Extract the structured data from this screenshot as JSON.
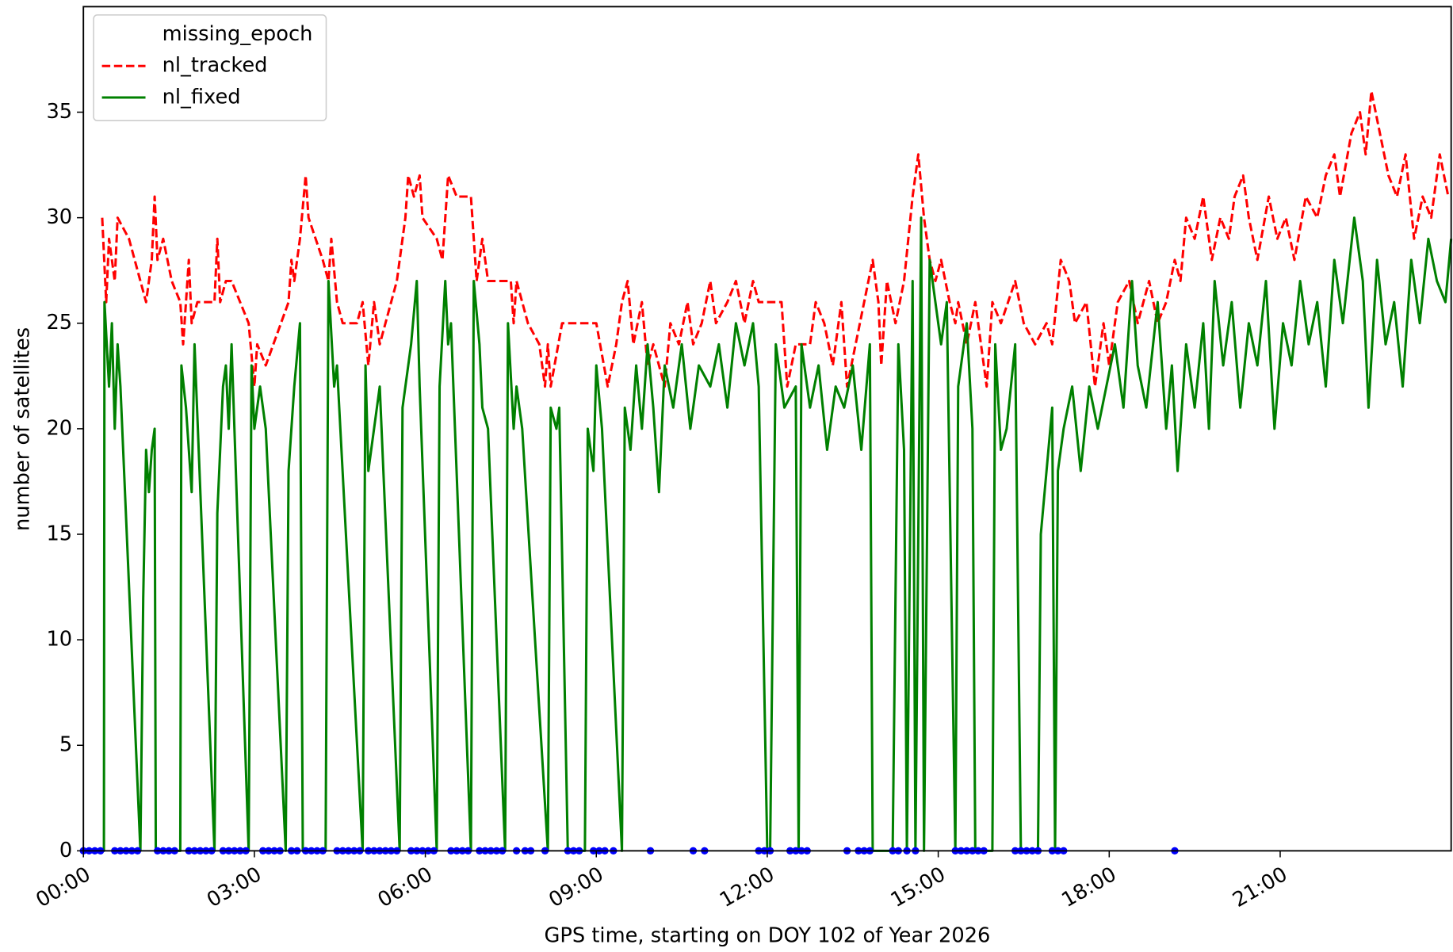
{
  "chart_data": {
    "type": "line",
    "xlabel": "GPS time, starting on DOY 102 of Year 2026",
    "ylabel": "number of satellites",
    "xlim": [
      0,
      24
    ],
    "ylim": [
      0,
      40
    ],
    "xticks": [
      {
        "value": 0,
        "label": "00:00"
      },
      {
        "value": 3,
        "label": "03:00"
      },
      {
        "value": 6,
        "label": "06:00"
      },
      {
        "value": 9,
        "label": "09:00"
      },
      {
        "value": 12,
        "label": "12:00"
      },
      {
        "value": 15,
        "label": "15:00"
      },
      {
        "value": 18,
        "label": "18:00"
      },
      {
        "value": 21,
        "label": "21:00"
      }
    ],
    "yticks": [
      0,
      5,
      10,
      15,
      20,
      25,
      30,
      35
    ],
    "grid": false,
    "legend": "upper left",
    "series": [
      {
        "name": "missing_epoch",
        "color": "#0000ff",
        "style": "scatter",
        "x": [
          0.0,
          0.1,
          0.2,
          0.3,
          0.55,
          0.65,
          0.75,
          0.85,
          0.95,
          1.3,
          1.4,
          1.5,
          1.6,
          1.85,
          1.95,
          2.05,
          2.15,
          2.25,
          2.45,
          2.55,
          2.65,
          2.75,
          2.85,
          3.15,
          3.25,
          3.35,
          3.45,
          3.65,
          3.75,
          3.9,
          4.0,
          4.1,
          4.2,
          4.45,
          4.55,
          4.65,
          4.75,
          4.85,
          5.0,
          5.1,
          5.2,
          5.3,
          5.4,
          5.5,
          5.75,
          5.85,
          5.95,
          6.05,
          6.15,
          6.45,
          6.55,
          6.65,
          6.75,
          6.95,
          7.05,
          7.15,
          7.25,
          7.35,
          7.6,
          7.75,
          7.85,
          8.1,
          8.5,
          8.6,
          8.7,
          8.95,
          9.05,
          9.15,
          9.3,
          9.95,
          10.7,
          10.9,
          11.85,
          11.95,
          12.05,
          12.4,
          12.5,
          12.6,
          12.7,
          13.4,
          13.6,
          13.7,
          13.8,
          14.2,
          14.3,
          14.45,
          14.6,
          15.3,
          15.4,
          15.5,
          15.6,
          15.7,
          15.8,
          16.35,
          16.45,
          16.55,
          16.65,
          16.75,
          17.0,
          17.1,
          17.2,
          19.15
        ],
        "values": [
          0,
          0,
          0,
          0,
          0,
          0,
          0,
          0,
          0,
          0,
          0,
          0,
          0,
          0,
          0,
          0,
          0,
          0,
          0,
          0,
          0,
          0,
          0,
          0,
          0,
          0,
          0,
          0,
          0,
          0,
          0,
          0,
          0,
          0,
          0,
          0,
          0,
          0,
          0,
          0,
          0,
          0,
          0,
          0,
          0,
          0,
          0,
          0,
          0,
          0,
          0,
          0,
          0,
          0,
          0,
          0,
          0,
          0,
          0,
          0,
          0,
          0,
          0,
          0,
          0,
          0,
          0,
          0,
          0,
          0,
          0,
          0,
          0,
          0,
          0,
          0,
          0,
          0,
          0,
          0,
          0,
          0,
          0,
          0,
          0,
          0,
          0,
          0,
          0,
          0,
          0,
          0,
          0,
          0,
          0,
          0,
          0,
          0,
          0,
          0,
          0,
          0
        ]
      },
      {
        "name": "nl_tracked",
        "color": "#ff0000",
        "style": "dashed",
        "x": [
          0.33,
          0.4,
          0.45,
          0.55,
          0.6,
          0.8,
          1.0,
          1.1,
          1.2,
          1.25,
          1.3,
          1.4,
          1.55,
          1.7,
          1.75,
          1.85,
          1.9,
          2.0,
          2.3,
          2.35,
          2.4,
          2.5,
          2.6,
          2.9,
          3.0,
          3.05,
          3.2,
          3.6,
          3.65,
          3.7,
          3.8,
          3.9,
          3.95,
          4.2,
          4.3,
          4.35,
          4.45,
          4.55,
          4.8,
          4.9,
          5.0,
          5.1,
          5.2,
          5.5,
          5.6,
          5.65,
          5.7,
          5.8,
          5.9,
          5.95,
          6.2,
          6.3,
          6.4,
          6.55,
          6.8,
          6.85,
          6.9,
          7.0,
          7.1,
          7.5,
          7.55,
          7.6,
          7.7,
          7.8,
          8.0,
          8.1,
          8.15,
          8.2,
          8.4,
          8.7,
          9.0,
          9.2,
          9.35,
          9.45,
          9.55,
          9.65,
          9.8,
          9.9,
          10.0,
          10.2,
          10.3,
          10.45,
          10.6,
          10.7,
          10.85,
          11.0,
          11.1,
          11.3,
          11.45,
          11.6,
          11.75,
          11.85,
          12.0,
          12.25,
          12.35,
          12.5,
          12.75,
          12.85,
          13.0,
          13.15,
          13.3,
          13.4,
          13.55,
          13.7,
          13.85,
          13.95,
          14.0,
          14.1,
          14.25,
          14.4,
          14.55,
          14.65,
          14.75,
          14.85,
          14.95,
          15.05,
          15.2,
          15.3,
          15.35,
          15.5,
          15.65,
          15.85,
          15.95,
          16.1,
          16.35,
          16.5,
          16.7,
          16.9,
          17.0,
          17.15,
          17.3,
          17.4,
          17.6,
          17.75,
          17.9,
          18.0,
          18.15,
          18.35,
          18.5,
          18.7,
          18.85,
          19.0,
          19.15,
          19.25,
          19.35,
          19.5,
          19.65,
          19.8,
          19.95,
          20.1,
          20.2,
          20.35,
          20.45,
          20.6,
          20.8,
          20.95,
          21.1,
          21.25,
          21.45,
          21.65,
          21.8,
          21.95,
          22.05,
          22.25,
          22.4,
          22.5,
          22.6,
          22.75,
          22.9,
          23.05,
          23.2,
          23.35,
          23.5,
          23.65,
          23.8,
          23.95
        ],
        "values": [
          30,
          26,
          29,
          27,
          30,
          29,
          27,
          26,
          28,
          31,
          28,
          29,
          27,
          26,
          24,
          28,
          25,
          26,
          26,
          29,
          26,
          27,
          27,
          25,
          22,
          24,
          23,
          26,
          28,
          27,
          29,
          32,
          30,
          28,
          27,
          29,
          26,
          25,
          25,
          26,
          23,
          26,
          24,
          27,
          29,
          30,
          32,
          31,
          32,
          30,
          29,
          28,
          32,
          31,
          31,
          29,
          27,
          29,
          27,
          27,
          25,
          27,
          26,
          25,
          24,
          22,
          24,
          22,
          25,
          25,
          25,
          22,
          24,
          26,
          27,
          24,
          26,
          23,
          24,
          22,
          25,
          24,
          26,
          24,
          25,
          27,
          25,
          26,
          27,
          25,
          27,
          26,
          26,
          26,
          22,
          24,
          24,
          26,
          25,
          23,
          26,
          22,
          24,
          26,
          28,
          26,
          23,
          27,
          25,
          27,
          31,
          33,
          30,
          28,
          27,
          28,
          26,
          25,
          26,
          24,
          26,
          22,
          26,
          25,
          27,
          25,
          24,
          25,
          24,
          28,
          27,
          25,
          26,
          22,
          25,
          23,
          26,
          27,
          25,
          27,
          25,
          26,
          28,
          27,
          30,
          29,
          31,
          28,
          30,
          29,
          31,
          32,
          30,
          28,
          31,
          29,
          30,
          28,
          31,
          30,
          32,
          33,
          31,
          34,
          35,
          33,
          36,
          34,
          32,
          31,
          33,
          29,
          31,
          30,
          33,
          31
        ]
      },
      {
        "name": "nl_fixed",
        "color": "#008000",
        "style": "solid",
        "x": [
          0,
          0.36,
          0.37,
          0.45,
          0.5,
          0.55,
          0.6,
          0.65,
          1.0,
          1.05,
          1.1,
          1.15,
          1.2,
          1.25,
          1.27,
          1.7,
          1.72,
          1.8,
          1.9,
          1.95,
          2.3,
          2.35,
          2.45,
          2.5,
          2.55,
          2.6,
          2.9,
          2.95,
          3.0,
          3.1,
          3.2,
          3.55,
          3.6,
          3.7,
          3.8,
          3.85,
          4.25,
          4.3,
          4.4,
          4.45,
          4.9,
          4.95,
          5.0,
          5.1,
          5.2,
          5.55,
          5.6,
          5.75,
          5.85,
          5.9,
          6.2,
          6.25,
          6.35,
          6.4,
          6.45,
          6.8,
          6.85,
          6.95,
          7.0,
          7.1,
          7.4,
          7.45,
          7.55,
          7.6,
          7.7,
          8.15,
          8.2,
          8.3,
          8.35,
          8.5,
          8.8,
          8.85,
          8.95,
          9.0,
          9.1,
          9.45,
          9.5,
          9.6,
          9.7,
          9.8,
          9.9,
          10.0,
          10.1,
          10.2,
          10.35,
          10.5,
          10.65,
          10.8,
          11.0,
          11.15,
          11.3,
          11.45,
          11.6,
          11.75,
          11.85,
          12.0,
          12.05,
          12.15,
          12.3,
          12.5,
          12.55,
          12.6,
          12.75,
          12.9,
          13.05,
          13.2,
          13.35,
          13.5,
          13.65,
          13.8,
          13.85,
          14.2,
          14.3,
          14.4,
          14.45,
          14.55,
          14.6,
          14.7,
          14.75,
          14.85,
          14.95,
          15.05,
          15.15,
          15.3,
          15.35,
          15.5,
          15.6,
          15.65,
          15.95,
          16.0,
          16.1,
          16.2,
          16.35,
          16.45,
          16.75,
          16.8,
          16.9,
          17.0,
          17.05,
          17.1,
          17.2,
          17.35,
          17.5,
          17.65,
          17.8,
          17.95,
          18.1,
          18.25,
          18.4,
          18.5,
          18.65,
          18.85,
          19.0,
          19.1,
          19.2,
          19.35,
          19.5,
          19.65,
          19.75,
          19.85,
          20.0,
          20.15,
          20.3,
          20.45,
          20.6,
          20.75,
          20.9,
          21.05,
          21.2,
          21.35,
          21.5,
          21.65,
          21.8,
          21.95,
          22.1,
          22.3,
          22.45,
          22.55,
          22.7,
          22.85,
          23.0,
          23.15,
          23.3,
          23.45,
          23.6,
          23.75,
          23.9,
          24.0
        ],
        "values": [
          0,
          0,
          26,
          22,
          25,
          20,
          24,
          22,
          0,
          12,
          19,
          17,
          19,
          20,
          0,
          0,
          23,
          21,
          17,
          24,
          0,
          16,
          22,
          23,
          20,
          24,
          0,
          23,
          20,
          22,
          20,
          0,
          18,
          22,
          25,
          0,
          0,
          27,
          22,
          23,
          0,
          23,
          18,
          20,
          22,
          0,
          21,
          24,
          27,
          22,
          0,
          22,
          27,
          24,
          25,
          0,
          27,
          24,
          21,
          20,
          0,
          25,
          20,
          22,
          20,
          0,
          21,
          20,
          21,
          0,
          0,
          20,
          18,
          23,
          20,
          0,
          21,
          19,
          23,
          20,
          24,
          21,
          17,
          23,
          21,
          24,
          20,
          23,
          22,
          24,
          21,
          25,
          23,
          25,
          22,
          0,
          0,
          24,
          21,
          22,
          0,
          24,
          21,
          23,
          19,
          22,
          21,
          23,
          19,
          24,
          0,
          0,
          24,
          19,
          0,
          27,
          0,
          30,
          0,
          28,
          26,
          24,
          26,
          0,
          22,
          25,
          20,
          0,
          0,
          24,
          19,
          20,
          24,
          0,
          0,
          15,
          18,
          21,
          0,
          18,
          20,
          22,
          18,
          22,
          20,
          22,
          24,
          21,
          27,
          23,
          21,
          26,
          20,
          23,
          18,
          24,
          21,
          25,
          20,
          27,
          23,
          26,
          21,
          25,
          23,
          27,
          20,
          25,
          23,
          27,
          24,
          26,
          22,
          28,
          25,
          30,
          27,
          21,
          28,
          24,
          26,
          22,
          28,
          25,
          29,
          27,
          26,
          29
        ]
      }
    ]
  }
}
